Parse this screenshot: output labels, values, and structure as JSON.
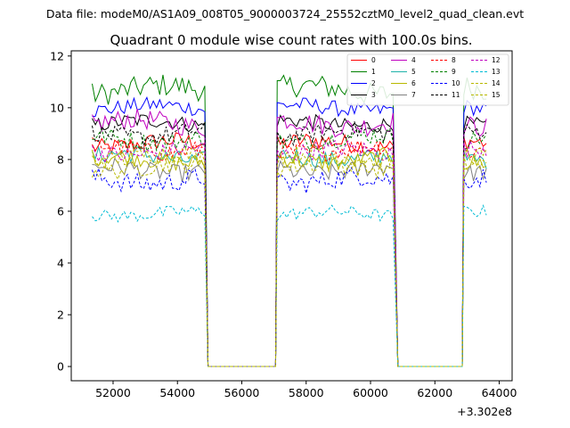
{
  "chart_data": {
    "type": "line",
    "suptitle": "Data file: modeM0/AS1A09_008T05_9000003724_25552cztM0_level2_quad_clean.evt",
    "title": "Quadrant 0 module wise count rates with 100.0s bins.",
    "xlabel": "",
    "ylabel": "",
    "x_offset_label": "+3.302e8",
    "xlim": [
      50700,
      64400
    ],
    "ylim": [
      -0.55,
      12.2
    ],
    "x_ticks": [
      52000,
      54000,
      56000,
      58000,
      60000,
      62000,
      64000
    ],
    "x_tick_labels": [
      "52000",
      "54000",
      "56000",
      "58000",
      "60000",
      "62000",
      "64000"
    ],
    "y_ticks": [
      0,
      2,
      4,
      6,
      8,
      10,
      12
    ],
    "y_tick_labels": [
      "0",
      "2",
      "4",
      "6",
      "8",
      "10",
      "12"
    ],
    "grid": false,
    "legend_position": "top-right",
    "segments": [
      [
        51350,
        54850
      ],
      [
        57100,
        60750
      ],
      [
        62900,
        63650
      ]
    ],
    "gaps": [
      [
        54950,
        57050
      ],
      [
        60850,
        62850
      ]
    ],
    "series": [
      {
        "name": "0",
        "color": "#ff0000",
        "style": "solid",
        "level": 8.6,
        "amp": 0.35
      },
      {
        "name": "1",
        "color": "#008000",
        "style": "solid",
        "level": 10.7,
        "amp": 0.45
      },
      {
        "name": "2",
        "color": "#0000ff",
        "style": "solid",
        "level": 10.0,
        "amp": 0.3
      },
      {
        "name": "3",
        "color": "#000000",
        "style": "solid",
        "level": 9.4,
        "amp": 0.3
      },
      {
        "name": "4",
        "color": "#c000c0",
        "style": "solid",
        "level": 9.4,
        "amp": 0.4
      },
      {
        "name": "5",
        "color": "#20b2aa",
        "style": "solid",
        "level": 8.1,
        "amp": 0.35
      },
      {
        "name": "6",
        "color": "#b8b800",
        "style": "solid",
        "level": 8.0,
        "amp": 0.35
      },
      {
        "name": "7",
        "color": "#808080",
        "style": "solid",
        "level": 7.6,
        "amp": 0.35
      },
      {
        "name": "8",
        "color": "#ff0000",
        "style": "dashed",
        "level": 8.4,
        "amp": 0.35
      },
      {
        "name": "9",
        "color": "#008000",
        "style": "dashed",
        "level": 8.8,
        "amp": 0.35
      },
      {
        "name": "10",
        "color": "#0000ff",
        "style": "dashed",
        "level": 7.2,
        "amp": 0.4
      },
      {
        "name": "11",
        "color": "#000000",
        "style": "dashed",
        "level": 9.0,
        "amp": 0.35
      },
      {
        "name": "12",
        "color": "#c000c0",
        "style": "dashed",
        "level": 8.3,
        "amp": 0.35
      },
      {
        "name": "13",
        "color": "#00bcd4",
        "style": "dashed",
        "level": 5.9,
        "amp": 0.25
      },
      {
        "name": "14",
        "color": "#b8b800",
        "style": "dashed",
        "level": 7.7,
        "amp": 0.35
      },
      {
        "name": "15",
        "color": "#b8b800",
        "style": "dashed",
        "level": 8.1,
        "amp": 0.35
      }
    ]
  }
}
